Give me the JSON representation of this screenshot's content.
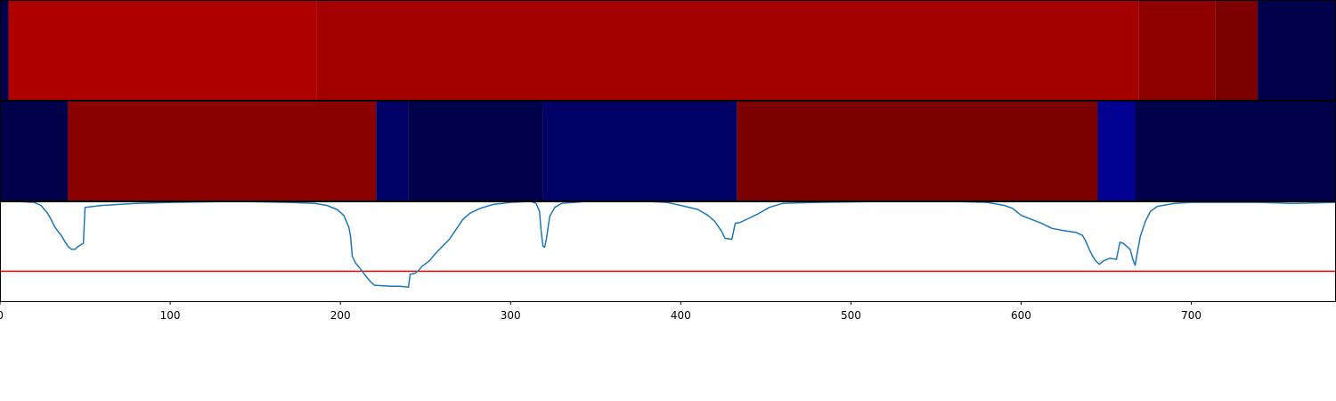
{
  "chart_data": [
    {
      "type": "heatmap",
      "colormap": "seismic",
      "x_range": [
        0,
        785
      ],
      "segments": [
        {
          "start": 0,
          "end": 5,
          "value": 0.08
        },
        {
          "start": 5,
          "end": 186,
          "value": 0.68
        },
        {
          "start": 186,
          "end": 669,
          "value": 0.64
        },
        {
          "start": 669,
          "end": 714,
          "value": 0.56
        },
        {
          "start": 714,
          "end": 739,
          "value": 0.5
        },
        {
          "start": 739,
          "end": 785,
          "value": 0.08
        }
      ]
    },
    {
      "type": "heatmap",
      "colormap": "seismic",
      "x_range": [
        0,
        785
      ],
      "segments": [
        {
          "start": 0,
          "end": 40,
          "value": 0.08
        },
        {
          "start": 40,
          "end": 221,
          "value": 0.55
        },
        {
          "start": 221,
          "end": 240,
          "value": 0.11
        },
        {
          "start": 240,
          "end": 319,
          "value": 0.08
        },
        {
          "start": 319,
          "end": 433,
          "value": 0.11
        },
        {
          "start": 433,
          "end": 645,
          "value": 0.5
        },
        {
          "start": 645,
          "end": 667,
          "value": 0.16
        },
        {
          "start": 667,
          "end": 785,
          "value": 0.08
        }
      ]
    },
    {
      "type": "line",
      "color": "#1f77b4",
      "threshold": {
        "value": 0.3,
        "color": "#ff0000"
      },
      "xlim": [
        0,
        785
      ],
      "ylim": [
        0,
        1
      ],
      "xticks": [
        0,
        100,
        200,
        300,
        400,
        500,
        600,
        700
      ],
      "points": [
        [
          0,
          1.0
        ],
        [
          10,
          1.0
        ],
        [
          20,
          0.99
        ],
        [
          24,
          0.96
        ],
        [
          26,
          0.92
        ],
        [
          28,
          0.88
        ],
        [
          30,
          0.82
        ],
        [
          32,
          0.75
        ],
        [
          34,
          0.7
        ],
        [
          36,
          0.66
        ],
        [
          38,
          0.6
        ],
        [
          40,
          0.55
        ],
        [
          42,
          0.52
        ],
        [
          44,
          0.52
        ],
        [
          46,
          0.55
        ],
        [
          48,
          0.57
        ],
        [
          49,
          0.58
        ],
        [
          50,
          0.94
        ],
        [
          60,
          0.96
        ],
        [
          80,
          0.98
        ],
        [
          100,
          0.99
        ],
        [
          140,
          1.0
        ],
        [
          170,
          0.99
        ],
        [
          185,
          0.98
        ],
        [
          192,
          0.96
        ],
        [
          198,
          0.92
        ],
        [
          202,
          0.86
        ],
        [
          205,
          0.74
        ],
        [
          206,
          0.65
        ],
        [
          207,
          0.45
        ],
        [
          209,
          0.38
        ],
        [
          212,
          0.32
        ],
        [
          215,
          0.25
        ],
        [
          218,
          0.19
        ],
        [
          220,
          0.16
        ],
        [
          230,
          0.15
        ],
        [
          235,
          0.15
        ],
        [
          240,
          0.14
        ],
        [
          241,
          0.27
        ],
        [
          244,
          0.28
        ],
        [
          246,
          0.31
        ],
        [
          248,
          0.35
        ],
        [
          252,
          0.4
        ],
        [
          256,
          0.48
        ],
        [
          260,
          0.55
        ],
        [
          264,
          0.62
        ],
        [
          268,
          0.72
        ],
        [
          272,
          0.82
        ],
        [
          276,
          0.88
        ],
        [
          282,
          0.93
        ],
        [
          290,
          0.97
        ],
        [
          300,
          0.99
        ],
        [
          312,
          1.0
        ],
        [
          315,
          0.98
        ],
        [
          317,
          0.9
        ],
        [
          318,
          0.7
        ],
        [
          319,
          0.55
        ],
        [
          320,
          0.54
        ],
        [
          321,
          0.62
        ],
        [
          323,
          0.85
        ],
        [
          326,
          0.94
        ],
        [
          330,
          0.98
        ],
        [
          345,
          1.0
        ],
        [
          380,
          1.0
        ],
        [
          392,
          0.99
        ],
        [
          400,
          0.96
        ],
        [
          410,
          0.92
        ],
        [
          416,
          0.86
        ],
        [
          420,
          0.8
        ],
        [
          424,
          0.7
        ],
        [
          426,
          0.63
        ],
        [
          430,
          0.62
        ],
        [
          432,
          0.78
        ],
        [
          435,
          0.79
        ],
        [
          440,
          0.83
        ],
        [
          446,
          0.88
        ],
        [
          452,
          0.94
        ],
        [
          460,
          0.98
        ],
        [
          480,
          0.99
        ],
        [
          520,
          1.0
        ],
        [
          560,
          1.0
        ],
        [
          580,
          0.99
        ],
        [
          590,
          0.96
        ],
        [
          595,
          0.93
        ],
        [
          600,
          0.86
        ],
        [
          606,
          0.82
        ],
        [
          612,
          0.78
        ],
        [
          618,
          0.73
        ],
        [
          624,
          0.71
        ],
        [
          628,
          0.7
        ],
        [
          632,
          0.69
        ],
        [
          636,
          0.66
        ],
        [
          638,
          0.6
        ],
        [
          640,
          0.52
        ],
        [
          642,
          0.45
        ],
        [
          644,
          0.4
        ],
        [
          646,
          0.37
        ],
        [
          648,
          0.4
        ],
        [
          652,
          0.43
        ],
        [
          656,
          0.42
        ],
        [
          658,
          0.59
        ],
        [
          660,
          0.58
        ],
        [
          662,
          0.55
        ],
        [
          664,
          0.52
        ],
        [
          666,
          0.4
        ],
        [
          667,
          0.36
        ],
        [
          668,
          0.46
        ],
        [
          670,
          0.65
        ],
        [
          673,
          0.8
        ],
        [
          676,
          0.9
        ],
        [
          680,
          0.95
        ],
        [
          690,
          0.98
        ],
        [
          700,
          0.99
        ],
        [
          720,
          0.99
        ],
        [
          740,
          0.99
        ],
        [
          760,
          0.98
        ],
        [
          785,
          0.99
        ]
      ]
    }
  ]
}
